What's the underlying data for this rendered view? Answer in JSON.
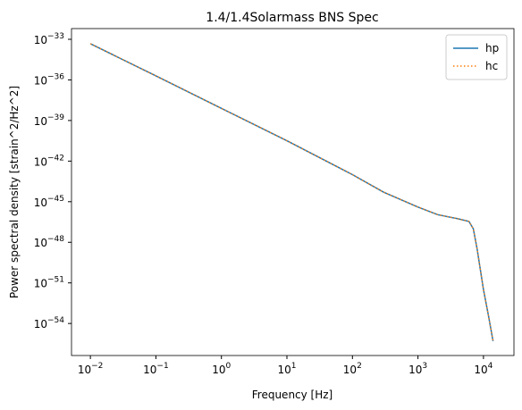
{
  "chart_data": {
    "type": "line",
    "title": "1.4/1.4Solarmass BNS Spec",
    "x_label": "Frequency [Hz]",
    "y_label": "Power spectral density [strain^2/Hz^2]",
    "x_scale": "log",
    "y_scale": "log",
    "x": [
      0.01,
      0.1,
      1,
      10,
      100,
      300,
      1000,
      2000,
      4000,
      6000,
      7000,
      8000,
      10000,
      12000,
      14000
    ],
    "series": [
      {
        "name": "hp",
        "color": "#1f77b4",
        "style": "solid",
        "values": [
          4.7e-34,
          2e-36,
          7.9e-39,
          3.2e-41,
          1e-43,
          5e-45,
          4e-46,
          1.1e-46,
          5.6e-47,
          3.5e-47,
          1e-47,
          3.2e-49,
          3.2e-52,
          3.2e-54,
          5e-56
        ]
      },
      {
        "name": "hc",
        "color": "#ff7f0e",
        "style": "dotted",
        "values": [
          4.7e-34,
          2e-36,
          7.9e-39,
          3.2e-41,
          1e-43,
          5e-45,
          4e-46,
          1.1e-46,
          5.6e-47,
          3.5e-47,
          1e-47,
          3.2e-49,
          3.2e-52,
          3.2e-54,
          5e-56
        ]
      }
    ],
    "xlim": [
      0.00515,
      29200
    ],
    "ylim": [
      4.3e-57,
      6.2e-33
    ],
    "xticks": [
      {
        "value": 0.01,
        "label": "10^−2"
      },
      {
        "value": 0.1,
        "label": "10^−1"
      },
      {
        "value": 1,
        "label": "10^0"
      },
      {
        "value": 10,
        "label": "10^1"
      },
      {
        "value": 100,
        "label": "10^2"
      },
      {
        "value": 1000,
        "label": "10^3"
      },
      {
        "value": 10000,
        "label": "10^4"
      }
    ],
    "yticks": [
      {
        "value": 1e-33,
        "label": "10^−33"
      },
      {
        "value": 1e-36,
        "label": "10^−36"
      },
      {
        "value": 1e-39,
        "label": "10^−39"
      },
      {
        "value": 1e-42,
        "label": "10^−42"
      },
      {
        "value": 1e-45,
        "label": "10^−45"
      },
      {
        "value": 1e-48,
        "label": "10^−48"
      },
      {
        "value": 1e-51,
        "label": "10^−51"
      },
      {
        "value": 1e-54,
        "label": "10^−54"
      }
    ],
    "legend": "upper right"
  }
}
